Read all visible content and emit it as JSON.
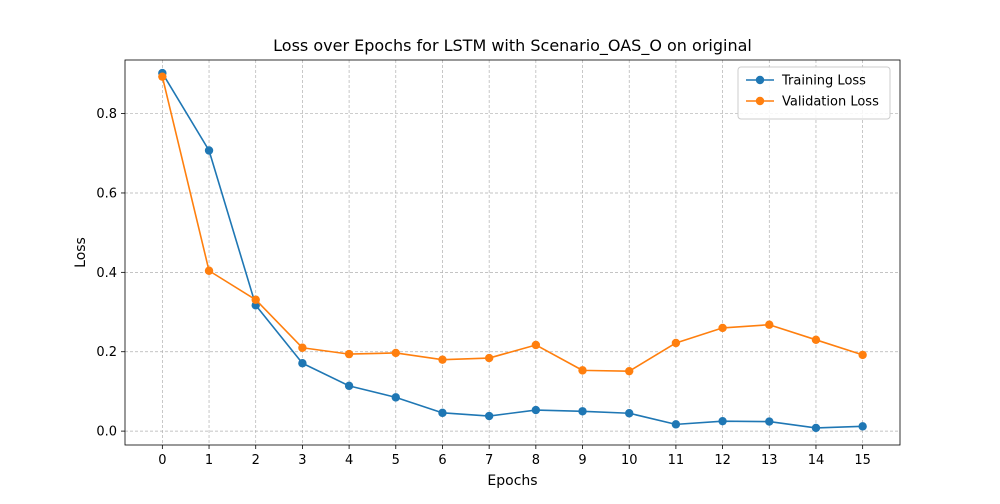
{
  "chart_data": {
    "type": "line",
    "title": "Loss over Epochs for LSTM with Scenario_OAS_O on original",
    "xlabel": "Epochs",
    "ylabel": "Loss",
    "x": [
      0,
      1,
      2,
      3,
      4,
      5,
      6,
      7,
      8,
      9,
      10,
      11,
      12,
      13,
      14,
      15
    ],
    "xlim": [
      -0.8,
      15.8
    ],
    "ylim": [
      -0.035,
      0.935
    ],
    "xticks": [
      "0",
      "1",
      "2",
      "3",
      "4",
      "5",
      "6",
      "7",
      "8",
      "9",
      "10",
      "11",
      "12",
      "13",
      "14",
      "15"
    ],
    "yticks": [
      0.0,
      0.2,
      0.4,
      0.6,
      0.8
    ],
    "ytick_labels": [
      "0.0",
      "0.2",
      "0.4",
      "0.6",
      "0.8"
    ],
    "grid": true,
    "legend_position": "top-right",
    "series": [
      {
        "name": "Training Loss",
        "color": "#1f77b4",
        "values": [
          0.902,
          0.707,
          0.317,
          0.171,
          0.114,
          0.085,
          0.046,
          0.038,
          0.053,
          0.05,
          0.045,
          0.017,
          0.025,
          0.024,
          0.008,
          0.012
        ]
      },
      {
        "name": "Validation Loss",
        "color": "#ff7f0e",
        "values": [
          0.893,
          0.404,
          0.331,
          0.21,
          0.194,
          0.197,
          0.18,
          0.184,
          0.217,
          0.153,
          0.151,
          0.222,
          0.26,
          0.268,
          0.23,
          0.192
        ]
      }
    ]
  }
}
